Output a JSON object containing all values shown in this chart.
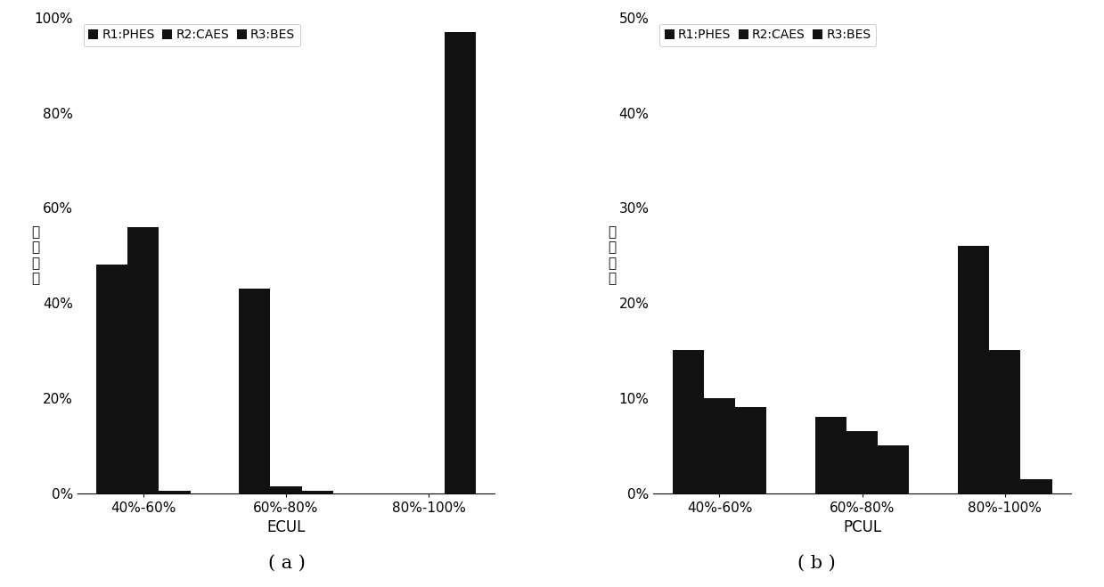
{
  "chart_a": {
    "categories": [
      "40%-60%",
      "60%-80%",
      "80%-100%"
    ],
    "xlabel": "ECUL",
    "ylabel": "概率密度",
    "ylim": [
      0,
      1.0
    ],
    "yticks": [
      0,
      0.2,
      0.4,
      0.6,
      0.8,
      1.0
    ],
    "R1": [
      0.48,
      0.43,
      0.0
    ],
    "R2": [
      0.56,
      0.015,
      0.0
    ],
    "R3": [
      0.005,
      0.005,
      0.97
    ],
    "label": "( a )"
  },
  "chart_b": {
    "categories": [
      "40%-60%",
      "60%-80%",
      "80%-100%"
    ],
    "xlabel": "PCUL",
    "ylabel": "概率密度",
    "ylim": [
      0,
      0.5
    ],
    "yticks": [
      0,
      0.1,
      0.2,
      0.3,
      0.4,
      0.5
    ],
    "R1": [
      0.15,
      0.08,
      0.26
    ],
    "R2": [
      0.1,
      0.065,
      0.15
    ],
    "R3": [
      0.09,
      0.05,
      0.015
    ],
    "label": "( b )"
  },
  "legend_labels": [
    "R1:PHES",
    "R2:CAES",
    "R3:BES"
  ],
  "bar_color": "#111111",
  "bar_width": 0.22,
  "background_color": "#ffffff",
  "tick_fontsize": 11,
  "axis_fontsize": 12,
  "label_fontsize": 15
}
